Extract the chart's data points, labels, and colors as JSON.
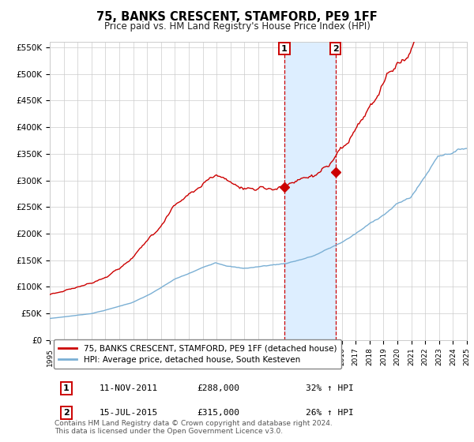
{
  "title": "75, BANKS CRESCENT, STAMFORD, PE9 1FF",
  "subtitle": "Price paid vs. HM Land Registry's House Price Index (HPI)",
  "legend_line1": "75, BANKS CRESCENT, STAMFORD, PE9 1FF (detached house)",
  "legend_line2": "HPI: Average price, detached house, South Kesteven",
  "annotation1_label": "1",
  "annotation1_date": "11-NOV-2011",
  "annotation1_price": "£288,000",
  "annotation1_hpi": "32% ↑ HPI",
  "annotation2_label": "2",
  "annotation2_date": "15-JUL-2015",
  "annotation2_price": "£315,000",
  "annotation2_hpi": "26% ↑ HPI",
  "footnote1": "Contains HM Land Registry data © Crown copyright and database right 2024.",
  "footnote2": "This data is licensed under the Open Government Licence v3.0.",
  "red_color": "#cc0000",
  "blue_color": "#7aafd4",
  "highlight_color": "#ddeeff",
  "grid_color": "#cccccc",
  "ylim_min": 0,
  "ylim_max": 560000,
  "yticks": [
    0,
    50000,
    100000,
    150000,
    200000,
    250000,
    300000,
    350000,
    400000,
    450000,
    500000,
    550000
  ],
  "ytick_labels": [
    "£0",
    "£50K",
    "£100K",
    "£150K",
    "£200K",
    "£250K",
    "£300K",
    "£350K",
    "£400K",
    "£450K",
    "£500K",
    "£550K"
  ],
  "xstart_year": 1995,
  "xend_year": 2025,
  "event1_year": 2011.87,
  "event2_year": 2015.54,
  "event1_red_value": 288000,
  "event2_red_value": 315000
}
